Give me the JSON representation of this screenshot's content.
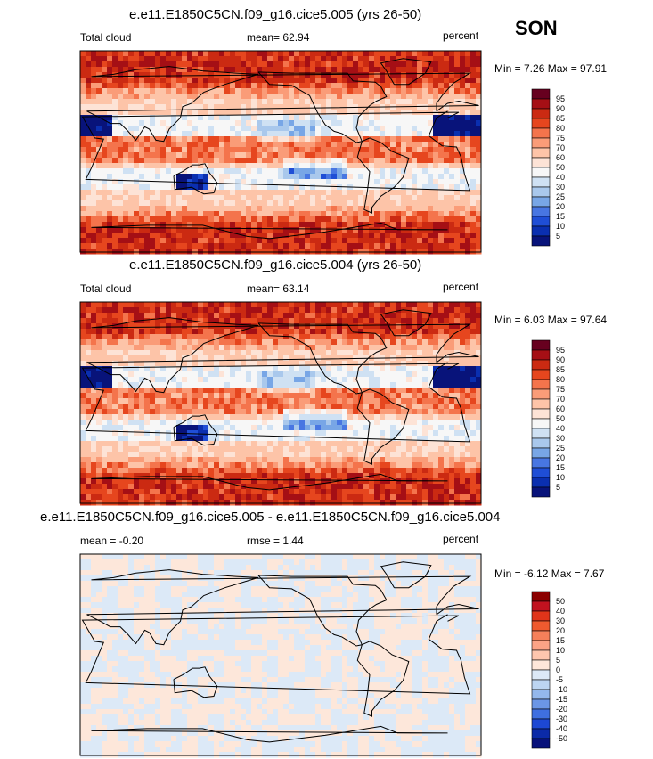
{
  "season": "SON",
  "chart_data": [
    {
      "type": "contour-map",
      "title": "e.e11.E1850C5CN.f09_g16.cice5.005 (yrs 26-50)",
      "left_label": "Total cloud",
      "mean_text": "mean=  62.94",
      "units": "percent",
      "minmax_text": "Min =  7.26 Max =  97.91",
      "min": 7.26,
      "max": 97.91,
      "mean": 62.94,
      "colorbar": {
        "labels": [
          "95",
          "90",
          "85",
          "80",
          "75",
          "70",
          "60",
          "50",
          "40",
          "30",
          "25",
          "20",
          "15",
          "10",
          "5"
        ],
        "colors": [
          "#67001f",
          "#a50f15",
          "#cb2a12",
          "#e6461e",
          "#f4744c",
          "#fa9c78",
          "#fdc4a8",
          "#fde3d6",
          "#f7f7f7",
          "#cfe1f3",
          "#a9c8ec",
          "#78a6e6",
          "#4876e2",
          "#1f4ed6",
          "#0a2fb0",
          "#08137a"
        ]
      },
      "field": "full"
    },
    {
      "type": "contour-map",
      "title": "e.e11.E1850C5CN.f09_g16.cice5.004 (yrs 26-50)",
      "left_label": "Total cloud",
      "mean_text": "mean=  63.14",
      "units": "percent",
      "minmax_text": "Min =  6.03 Max =  97.64",
      "min": 6.03,
      "max": 97.64,
      "mean": 63.14,
      "colorbar": {
        "labels": [
          "95",
          "90",
          "85",
          "80",
          "75",
          "70",
          "60",
          "50",
          "40",
          "30",
          "25",
          "20",
          "15",
          "10",
          "5"
        ],
        "colors": [
          "#67001f",
          "#a50f15",
          "#cb2a12",
          "#e6461e",
          "#f4744c",
          "#fa9c78",
          "#fdc4a8",
          "#fde3d6",
          "#f7f7f7",
          "#cfe1f3",
          "#a9c8ec",
          "#78a6e6",
          "#4876e2",
          "#1f4ed6",
          "#0a2fb0",
          "#08137a"
        ]
      },
      "field": "full"
    },
    {
      "type": "contour-map",
      "title": "e.e11.E1850C5CN.f09_g16.cice5.005 - e.e11.E1850C5CN.f09_g16.cice5.004",
      "left_label": "mean =  -0.20",
      "mean_text": "rmse =   1.44",
      "units": "percent",
      "minmax_text": "Min =  -6.12 Max =  7.67",
      "min": -6.12,
      "max": 7.67,
      "mean": -0.2,
      "rmse": 1.44,
      "colorbar": {
        "labels": [
          "50",
          "40",
          "30",
          "20",
          "15",
          "10",
          "5",
          "0",
          "-5",
          "-10",
          "-15",
          "-20",
          "-30",
          "-40",
          "-50"
        ],
        "colors": [
          "#8b0000",
          "#c1121f",
          "#e0341a",
          "#ef5a2f",
          "#f5805a",
          "#fba386",
          "#fdc6ae",
          "#fde7da",
          "#dce9f7",
          "#bcd5f2",
          "#94b8ec",
          "#6b96e6",
          "#3f6fe0",
          "#1d48d3",
          "#0b2aa8",
          "#07117a"
        ]
      },
      "field": "diff"
    }
  ]
}
